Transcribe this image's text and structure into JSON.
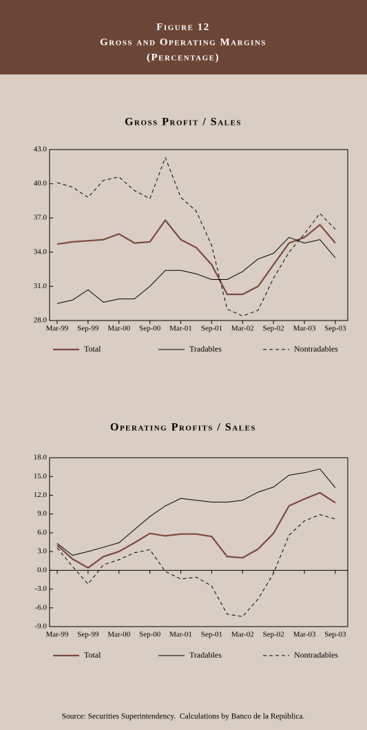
{
  "header": {
    "figure": "Figure 12",
    "title": "Gross and Operating Margins",
    "subtitle": "(Percentage)"
  },
  "chart_data": [
    {
      "type": "line",
      "title": "Gross Profit / Sales",
      "categories": [
        "Mar-99",
        null,
        "Sep-99",
        null,
        "Mar-00",
        null,
        "Sep-00",
        null,
        "Mar-01",
        null,
        "Sep-01",
        null,
        "Mar-02",
        null,
        "Sep-02",
        null,
        "Mar-03",
        null,
        "Sep-03"
      ],
      "series": [
        {
          "name": "Total",
          "color": "#7a4a3c",
          "style": "bold",
          "values": [
            34.7,
            34.9,
            35.0,
            35.1,
            35.6,
            34.8,
            34.9,
            36.8,
            35.1,
            34.4,
            32.9,
            30.3,
            30.3,
            31.0,
            32.9,
            34.8,
            35.3,
            36.4,
            34.8
          ]
        },
        {
          "name": "Tradables",
          "color": "#000000",
          "style": "thin",
          "values": [
            29.5,
            29.8,
            30.7,
            29.6,
            29.9,
            29.9,
            31.0,
            32.4,
            32.4,
            32.1,
            31.6,
            31.6,
            32.3,
            33.4,
            33.9,
            35.3,
            34.8,
            35.1,
            33.5
          ]
        },
        {
          "name": "Nontradables",
          "color": "#000000",
          "style": "dashed",
          "values": [
            40.1,
            39.7,
            38.8,
            40.3,
            40.6,
            39.4,
            38.7,
            42.3,
            38.8,
            37.6,
            34.6,
            29.0,
            28.4,
            28.9,
            31.7,
            34.0,
            35.6,
            37.4,
            36.0
          ]
        }
      ],
      "ylim": [
        28.0,
        43.0
      ],
      "yticks": [
        {
          "value": 28,
          "label": "28.0"
        },
        {
          "value": 31,
          "label": "31.0"
        },
        {
          "value": 34,
          "label": "34.0"
        },
        {
          "value": 37,
          "label": "37.0"
        },
        {
          "value": 40,
          "label": "40.0"
        },
        {
          "value": 43,
          "label": "43.0"
        }
      ],
      "grid": false,
      "legend": "bottom"
    },
    {
      "type": "line",
      "title": "Operating Profits / Sales",
      "categories": [
        "Mar-99",
        null,
        "Sep-99",
        null,
        "Mar-00",
        null,
        "Sep-00",
        null,
        "Mar-01",
        null,
        "Sep-01",
        null,
        "Mar-02",
        null,
        "Sep-02",
        null,
        "Mar-03",
        null,
        "Sep-03"
      ],
      "series": [
        {
          "name": "Total",
          "color": "#7a4a3c",
          "style": "bold",
          "values": [
            4.0,
            1.8,
            0.4,
            2.2,
            3.0,
            4.4,
            5.9,
            5.5,
            5.8,
            5.8,
            5.4,
            2.2,
            2.0,
            3.4,
            5.9,
            10.3,
            11.4,
            12.4,
            10.8
          ]
        },
        {
          "name": "Tradables",
          "color": "#000000",
          "style": "thin",
          "values": [
            4.3,
            2.4,
            3.0,
            3.7,
            4.4,
            6.5,
            8.6,
            10.3,
            11.5,
            11.2,
            10.9,
            10.9,
            11.2,
            12.5,
            13.3,
            15.2,
            15.6,
            16.2,
            13.2
          ]
        },
        {
          "name": "Nontradables",
          "color": "#000000",
          "style": "dashed",
          "values": [
            3.6,
            0.6,
            -2.2,
            0.9,
            1.7,
            2.8,
            3.3,
            -0.2,
            -1.4,
            -1.1,
            -2.5,
            -7.0,
            -7.4,
            -4.6,
            -0.5,
            5.6,
            7.9,
            8.9,
            8.2
          ]
        }
      ],
      "ylim": [
        -9.0,
        18.0
      ],
      "yticks": [
        {
          "value": -9,
          "label": "-9.0"
        },
        {
          "value": -6,
          "label": "-6.0"
        },
        {
          "value": -3,
          "label": "-3.0"
        },
        {
          "value": 0,
          "label": "0.0"
        },
        {
          "value": 3,
          "label": "3.0"
        },
        {
          "value": 6,
          "label": "6.0"
        },
        {
          "value": 9,
          "label": "9.0"
        },
        {
          "value": 12,
          "label": "12.0"
        },
        {
          "value": 15,
          "label": "15.0"
        },
        {
          "value": 18,
          "label": "18.0"
        }
      ],
      "grid": false,
      "legend": "bottom"
    }
  ],
  "source": "Source: Securities Superintendency.  Calculations by Banco de la República."
}
